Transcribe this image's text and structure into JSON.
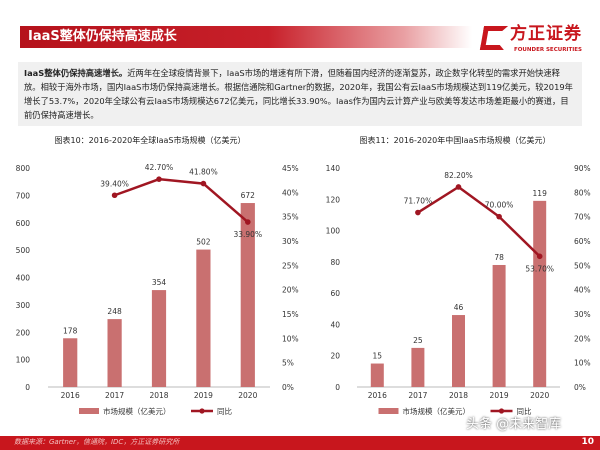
{
  "header": {
    "title": "IaaS整体仍保持高速成长"
  },
  "logo": {
    "cn": "方正证券",
    "en": "FOUNDER SECURITIES"
  },
  "summary": {
    "lead": "IaaS整体仍保持高速增长。",
    "body": "近两年在全球疫情背景下，IaaS市场的增速有所下滑，但随着国内经济的逐渐复苏，政企数字化转型的需求开始快速释放。相较于海外市场，国内IaaS市场仍保持高速增长。根据信通院和Gartner的数据，2020年，我国公有云IaaS市场规模达到119亿美元，较2019年增长了53.7%，2020年全球公有云IaaS市场规模达672亿美元，同比增长33.90%。Iaas作为国内云计算产业与欧美等发达市场差距最小的赛道，目前仍保持高速增长。"
  },
  "colors": {
    "bar": "#c97070",
    "line": "#a01622",
    "brand": "#c8161d"
  },
  "chart_data": [
    {
      "type": "bar+line",
      "title": "图表10：2016-2020年全球IaaS市场规模（亿美元）",
      "categories": [
        "2016",
        "2017",
        "2018",
        "2019",
        "2020"
      ],
      "series": [
        {
          "name": "市场规模（亿美元）",
          "type": "bar",
          "axis": "left",
          "values": [
            178,
            248,
            354,
            502,
            672
          ],
          "labels": [
            "178",
            "248",
            "354",
            "502",
            "672"
          ]
        },
        {
          "name": "同比",
          "type": "line",
          "axis": "right",
          "values": [
            null,
            39.4,
            42.7,
            41.8,
            33.9
          ],
          "labels": [
            "",
            "39.40%",
            "42.70%",
            "41.80%",
            "33.90%"
          ]
        }
      ],
      "ylim": [
        0,
        800
      ],
      "yticks": [
        "0",
        "100",
        "200",
        "300",
        "400",
        "500",
        "600",
        "700",
        "800"
      ],
      "y2lim": [
        0,
        45
      ],
      "y2ticks": [
        "0%",
        "5%",
        "10%",
        "15%",
        "20%",
        "25%",
        "30%",
        "35%",
        "40%",
        "45%"
      ],
      "legend": "bottom"
    },
    {
      "type": "bar+line",
      "title": "图表11：2016-2020年中国IaaS市场规模（亿美元）",
      "categories": [
        "2016",
        "2017",
        "2018",
        "2019",
        "2020"
      ],
      "series": [
        {
          "name": "市场规模（亿美元）",
          "type": "bar",
          "axis": "left",
          "values": [
            15,
            25,
            46,
            78,
            119
          ],
          "labels": [
            "15",
            "25",
            "46",
            "78",
            "119"
          ]
        },
        {
          "name": "同比",
          "type": "line",
          "axis": "right",
          "values": [
            null,
            71.7,
            82.2,
            70.0,
            53.7
          ],
          "labels": [
            "",
            "71.70%",
            "82.20%",
            "70.00%",
            "53.70%"
          ]
        }
      ],
      "ylim": [
        0,
        140
      ],
      "yticks": [
        "0",
        "20",
        "40",
        "60",
        "80",
        "100",
        "120",
        "140"
      ],
      "y2lim": [
        0,
        90
      ],
      "y2ticks": [
        "0%",
        "10%",
        "20%",
        "30%",
        "40%",
        "50%",
        "60%",
        "70%",
        "80%",
        "90%"
      ],
      "legend": "bottom"
    }
  ],
  "footer": {
    "source": "数据来源：Gartner，信通院，IDC，方正证券研究所",
    "page": "10",
    "watermark": "头条 @未来智库"
  }
}
